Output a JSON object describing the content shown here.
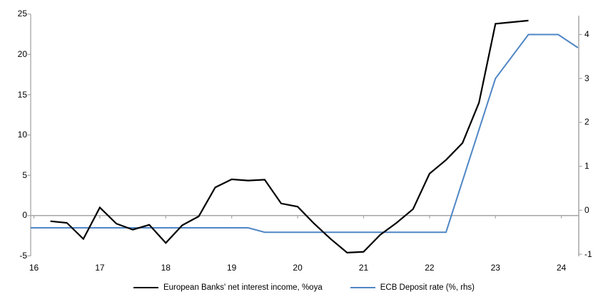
{
  "chart_data": {
    "type": "line",
    "title": "",
    "xlabel": "",
    "ylabel_left": "",
    "ylabel_right": "",
    "grid": "zero-line-only",
    "legend_position": "bottom-center",
    "x_axis": {
      "ticks": [
        16,
        17,
        18,
        19,
        20,
        21,
        22,
        23,
        24
      ],
      "range": [
        16,
        24.3
      ]
    },
    "left_axis": {
      "ticks": [
        25,
        20,
        15,
        10,
        5,
        0,
        -5
      ],
      "range": [
        -5,
        25
      ]
    },
    "right_axis": {
      "ticks": [
        4,
        3,
        2,
        1,
        0,
        -1
      ],
      "range": [
        -1.07,
        4.5
      ]
    },
    "series": [
      {
        "name": "European Banks' net interest income, %oya",
        "axis": "left",
        "color": "#000000",
        "points": [
          [
            16.25,
            -0.7
          ],
          [
            16.5,
            -0.9
          ],
          [
            16.75,
            -2.9
          ],
          [
            17.0,
            1.0
          ],
          [
            17.25,
            -1.0
          ],
          [
            17.5,
            -1.75
          ],
          [
            17.75,
            -1.15
          ],
          [
            18.0,
            -3.4
          ],
          [
            18.25,
            -1.2
          ],
          [
            18.5,
            -0.1
          ],
          [
            18.75,
            3.5
          ],
          [
            19.0,
            4.5
          ],
          [
            19.25,
            4.35
          ],
          [
            19.5,
            4.45
          ],
          [
            19.75,
            1.5
          ],
          [
            20.0,
            1.1
          ],
          [
            20.25,
            -1.0
          ],
          [
            20.5,
            -2.9
          ],
          [
            20.75,
            -4.6
          ],
          [
            21.0,
            -4.5
          ],
          [
            21.25,
            -2.4
          ],
          [
            21.5,
            -0.9
          ],
          [
            21.75,
            0.8
          ],
          [
            22.0,
            5.2
          ],
          [
            22.25,
            6.9
          ],
          [
            22.5,
            9.0
          ],
          [
            22.75,
            14.0
          ],
          [
            23.0,
            23.8
          ],
          [
            23.25,
            24.0
          ],
          [
            23.5,
            24.2
          ]
        ]
      },
      {
        "name": "ECB Deposit rate (%, rhs)",
        "axis": "right",
        "color": "#4f86c5",
        "extends_to_left_axis": true,
        "points": [
          [
            16.0,
            -0.4
          ],
          [
            19.25,
            -0.4
          ],
          [
            19.5,
            -0.5
          ],
          [
            22.25,
            -0.5
          ],
          [
            23.0,
            3.0
          ],
          [
            23.5,
            4.0
          ],
          [
            23.95,
            4.0
          ],
          [
            24.25,
            3.7
          ]
        ]
      }
    ]
  },
  "legend": {
    "series1": "European Banks' net interest income, %oya",
    "series2": "ECB Deposit rate (%, rhs)"
  },
  "colors": {
    "nii_line": "#000000",
    "deposit_line": "#4f86c5",
    "axis_gray": "#a6a6a6",
    "text": "#000000",
    "background": "#ffffff"
  }
}
